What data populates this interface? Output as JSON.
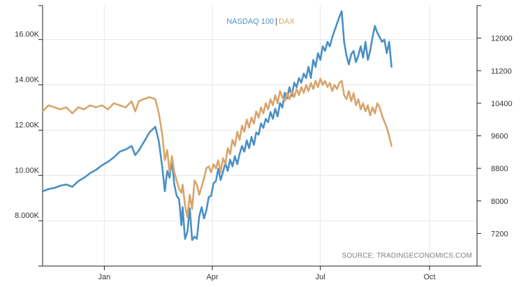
{
  "chart_data": {
    "type": "line",
    "title": "",
    "xlabel": "",
    "ylabel_left": "",
    "ylabel_right": "",
    "x_ticks": [
      "Jan",
      "Apr",
      "Jul",
      "Oct"
    ],
    "y_left_ticks": [
      "8.000K",
      "10.00K",
      "12.00K",
      "14.00K",
      "16.00K"
    ],
    "y_left_values": [
      8000,
      10000,
      12000,
      14000,
      16000
    ],
    "y_left_range": [
      6000,
      17500
    ],
    "y_right_ticks": [
      "7200",
      "8000",
      "8800",
      "9600",
      "10400",
      "11200",
      "12000"
    ],
    "y_right_values": [
      7200,
      8000,
      8800,
      9600,
      10400,
      11200,
      12000
    ],
    "y_right_range": [
      6400,
      12800
    ],
    "x_range_days": [
      -52,
      314
    ],
    "x_tick_days": [
      0,
      91,
      182,
      274
    ],
    "legend": {
      "separator": "|"
    },
    "source": "SOURCE: TRADINGECONOMICS.COM",
    "series": [
      {
        "name": "NASDAQ 100",
        "axis": "left",
        "color": "#4a90c4",
        "points": [
          [
            -52,
            9300
          ],
          [
            -47,
            9400
          ],
          [
            -42,
            9450
          ],
          [
            -37,
            9550
          ],
          [
            -32,
            9600
          ],
          [
            -27,
            9500
          ],
          [
            -22,
            9750
          ],
          [
            -17,
            9900
          ],
          [
            -12,
            10100
          ],
          [
            -7,
            10250
          ],
          [
            -2,
            10450
          ],
          [
            3,
            10600
          ],
          [
            8,
            10800
          ],
          [
            13,
            11050
          ],
          [
            18,
            11150
          ],
          [
            23,
            11300
          ],
          [
            26,
            10900
          ],
          [
            29,
            11100
          ],
          [
            33,
            11450
          ],
          [
            38,
            11900
          ],
          [
            43,
            12150
          ],
          [
            46,
            11500
          ],
          [
            49,
            10300
          ],
          [
            51,
            9300
          ],
          [
            53,
            10200
          ],
          [
            55,
            9900
          ],
          [
            57,
            10700
          ],
          [
            59,
            9600
          ],
          [
            61,
            9100
          ],
          [
            63,
            8950
          ],
          [
            65,
            7800
          ],
          [
            66,
            8600
          ],
          [
            68,
            7200
          ],
          [
            70,
            7500
          ],
          [
            72,
            8550
          ],
          [
            74,
            7150
          ],
          [
            76,
            7300
          ],
          [
            78,
            7200
          ],
          [
            80,
            8200
          ],
          [
            82,
            8600
          ],
          [
            84,
            8100
          ],
          [
            86,
            8450
          ],
          [
            88,
            9050
          ],
          [
            90,
            9100
          ],
          [
            92,
            9650
          ],
          [
            94,
            9750
          ],
          [
            96,
            10300
          ],
          [
            98,
            9800
          ],
          [
            100,
            10150
          ],
          [
            102,
            10550
          ],
          [
            104,
            10200
          ],
          [
            106,
            10700
          ],
          [
            108,
            10400
          ],
          [
            110,
            10850
          ],
          [
            112,
            10500
          ],
          [
            114,
            10950
          ],
          [
            116,
            11300
          ],
          [
            118,
            11050
          ],
          [
            120,
            11550
          ],
          [
            122,
            11200
          ],
          [
            124,
            11700
          ],
          [
            126,
            11350
          ],
          [
            128,
            11900
          ],
          [
            130,
            11800
          ],
          [
            132,
            12300
          ],
          [
            134,
            12100
          ],
          [
            136,
            12500
          ],
          [
            138,
            12350
          ],
          [
            140,
            12800
          ],
          [
            142,
            12500
          ],
          [
            144,
            12950
          ],
          [
            146,
            12600
          ],
          [
            148,
            13200
          ],
          [
            150,
            13000
          ],
          [
            152,
            13650
          ],
          [
            154,
            13400
          ],
          [
            156,
            13900
          ],
          [
            158,
            13500
          ],
          [
            160,
            14100
          ],
          [
            162,
            13900
          ],
          [
            164,
            14300
          ],
          [
            166,
            14100
          ],
          [
            168,
            14500
          ],
          [
            170,
            14300
          ],
          [
            172,
            14800
          ],
          [
            174,
            14300
          ],
          [
            176,
            15100
          ],
          [
            178,
            14800
          ],
          [
            180,
            15400
          ],
          [
            182,
            15100
          ],
          [
            184,
            15700
          ],
          [
            186,
            15500
          ],
          [
            188,
            15900
          ],
          [
            190,
            15700
          ],
          [
            192,
            16100
          ],
          [
            194,
            16400
          ],
          [
            196,
            16700
          ],
          [
            198,
            17000
          ],
          [
            200,
            17250
          ],
          [
            202,
            15900
          ],
          [
            204,
            15300
          ],
          [
            206,
            14900
          ],
          [
            208,
            15350
          ],
          [
            210,
            15500
          ],
          [
            212,
            15000
          ],
          [
            214,
            15300
          ],
          [
            216,
            15700
          ],
          [
            218,
            15200
          ],
          [
            220,
            15900
          ],
          [
            222,
            15100
          ],
          [
            224,
            15500
          ],
          [
            226,
            16100
          ],
          [
            228,
            16600
          ],
          [
            230,
            16300
          ],
          [
            232,
            16100
          ],
          [
            234,
            15900
          ],
          [
            236,
            16000
          ],
          [
            238,
            15400
          ],
          [
            240,
            15900
          ],
          [
            242,
            14800
          ]
        ]
      },
      {
        "name": "DAX",
        "axis": "right",
        "color": "#d9a46b",
        "points": [
          [
            -52,
            10200
          ],
          [
            -47,
            10350
          ],
          [
            -42,
            10300
          ],
          [
            -37,
            10250
          ],
          [
            -32,
            10300
          ],
          [
            -27,
            10150
          ],
          [
            -22,
            10300
          ],
          [
            -17,
            10250
          ],
          [
            -12,
            10350
          ],
          [
            -7,
            10300
          ],
          [
            -2,
            10350
          ],
          [
            3,
            10250
          ],
          [
            8,
            10400
          ],
          [
            13,
            10350
          ],
          [
            18,
            10300
          ],
          [
            23,
            10450
          ],
          [
            26,
            10200
          ],
          [
            29,
            10450
          ],
          [
            33,
            10500
          ],
          [
            38,
            10550
          ],
          [
            43,
            10500
          ],
          [
            46,
            10150
          ],
          [
            49,
            9600
          ],
          [
            51,
            9000
          ],
          [
            53,
            9250
          ],
          [
            55,
            8700
          ],
          [
            57,
            9100
          ],
          [
            59,
            8700
          ],
          [
            61,
            8500
          ],
          [
            63,
            8300
          ],
          [
            65,
            8200
          ],
          [
            66,
            8400
          ],
          [
            68,
            7900
          ],
          [
            70,
            7600
          ],
          [
            72,
            8150
          ],
          [
            74,
            7800
          ],
          [
            76,
            8500
          ],
          [
            78,
            8400
          ],
          [
            80,
            8150
          ],
          [
            82,
            8350
          ],
          [
            84,
            8550
          ],
          [
            86,
            8800
          ],
          [
            88,
            8850
          ],
          [
            90,
            8700
          ],
          [
            92,
            8900
          ],
          [
            94,
            8800
          ],
          [
            96,
            9000
          ],
          [
            98,
            8700
          ],
          [
            100,
            9050
          ],
          [
            102,
            8900
          ],
          [
            104,
            9300
          ],
          [
            106,
            9150
          ],
          [
            108,
            9500
          ],
          [
            110,
            9350
          ],
          [
            112,
            9700
          ],
          [
            114,
            9500
          ],
          [
            116,
            9850
          ],
          [
            118,
            9700
          ],
          [
            120,
            10000
          ],
          [
            122,
            9800
          ],
          [
            124,
            10050
          ],
          [
            126,
            9900
          ],
          [
            128,
            10200
          ],
          [
            130,
            10050
          ],
          [
            132,
            10300
          ],
          [
            134,
            10150
          ],
          [
            136,
            10400
          ],
          [
            138,
            10250
          ],
          [
            140,
            10500
          ],
          [
            142,
            10350
          ],
          [
            144,
            10600
          ],
          [
            146,
            10400
          ],
          [
            148,
            10700
          ],
          [
            150,
            10550
          ],
          [
            152,
            10450
          ],
          [
            154,
            10650
          ],
          [
            156,
            10500
          ],
          [
            158,
            10700
          ],
          [
            160,
            10550
          ],
          [
            162,
            10750
          ],
          [
            164,
            10600
          ],
          [
            166,
            10800
          ],
          [
            168,
            10650
          ],
          [
            170,
            10850
          ],
          [
            172,
            10700
          ],
          [
            174,
            10900
          ],
          [
            176,
            10750
          ],
          [
            178,
            10950
          ],
          [
            180,
            10800
          ],
          [
            182,
            11000
          ],
          [
            184,
            10850
          ],
          [
            186,
            10950
          ],
          [
            188,
            10800
          ],
          [
            190,
            10900
          ],
          [
            192,
            10700
          ],
          [
            194,
            10850
          ],
          [
            196,
            10750
          ],
          [
            198,
            10900
          ],
          [
            200,
            10950
          ],
          [
            202,
            10600
          ],
          [
            204,
            10500
          ],
          [
            206,
            10700
          ],
          [
            208,
            10450
          ],
          [
            210,
            10650
          ],
          [
            212,
            10350
          ],
          [
            214,
            10500
          ],
          [
            216,
            10250
          ],
          [
            218,
            10400
          ],
          [
            220,
            10200
          ],
          [
            222,
            10350
          ],
          [
            224,
            10100
          ],
          [
            226,
            10300
          ],
          [
            228,
            10150
          ],
          [
            230,
            10400
          ],
          [
            232,
            10300
          ],
          [
            234,
            10100
          ],
          [
            236,
            9950
          ],
          [
            238,
            9800
          ],
          [
            240,
            9600
          ],
          [
            242,
            9350
          ]
        ]
      }
    ]
  }
}
